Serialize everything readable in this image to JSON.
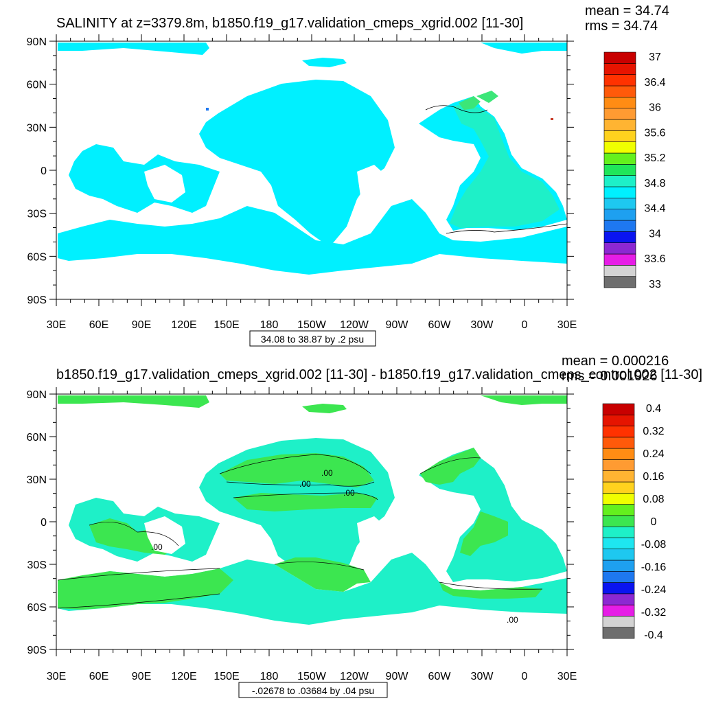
{
  "chart_data": [
    {
      "type": "heatmap",
      "title": "SALINITY at z=3379.8m, b1850.f19_g17.validation_cmeps_xgrid.002 [11-30]",
      "stats": {
        "mean": "mean = 34.74",
        "rms": "rms = 34.74"
      },
      "x_ticks": [
        "30E",
        "60E",
        "90E",
        "120E",
        "150E",
        "180",
        "150W",
        "120W",
        "90W",
        "60W",
        "30W",
        "0",
        "30E"
      ],
      "y_ticks": [
        "90N",
        "60N",
        "30N",
        "0",
        "30S",
        "60S",
        "90S"
      ],
      "y_values": [
        90,
        60,
        30,
        0,
        -30,
        -60,
        -90
      ],
      "contour_info": "34.08 to 38.87 by .2 psu",
      "colorbar": {
        "levels": [
          33,
          33.2,
          33.4,
          33.6,
          33.8,
          34,
          34.2,
          34.4,
          34.6,
          34.8,
          35,
          35.2,
          35.4,
          35.6,
          35.8,
          36,
          36.2,
          36.4,
          36.6,
          36.8,
          37
        ],
        "labels": [
          "37",
          "36.4",
          "36",
          "35.6",
          "35.2",
          "34.8",
          "34.4",
          "34",
          "33.6",
          "33"
        ],
        "colors": [
          "#6e6e6e",
          "#d3d3d3",
          "#e61de6",
          "#8c28d2",
          "#0a14f0",
          "#1e78f0",
          "#1ea0f0",
          "#1ec8f0",
          "#00f0ff",
          "#1ef0c8",
          "#20e65a",
          "#64f01e",
          "#f0ff00",
          "#ffd21e",
          "#ffb432",
          "#ff9b32",
          "#ff8c14",
          "#ff5a0a",
          "#ff3200",
          "#e61400",
          "#c80000"
        ]
      },
      "field_colors": {
        "ocean": "#00f0ff",
        "high": "#1ef0c8",
        "high2": "#3ce678",
        "dot_blue": "#1e78f0",
        "dot_red": "#c83c28"
      }
    },
    {
      "type": "heatmap",
      "title": "b1850.f19_g17.validation_cmeps_xgrid.002 [11-30] - b1850.f19_g17.validation_cmeps_control.002 [11-30]",
      "stats": {
        "mean": "mean = 0.000216",
        "rms": "rms = 0.001926"
      },
      "x_ticks": [
        "30E",
        "60E",
        "90E",
        "120E",
        "150E",
        "180",
        "150W",
        "120W",
        "90W",
        "60W",
        "30W",
        "0",
        "30E"
      ],
      "y_ticks": [
        "90N",
        "60N",
        "30N",
        "0",
        "30S",
        "60S",
        "90S"
      ],
      "y_values": [
        90,
        60,
        30,
        0,
        -30,
        -60,
        -90
      ],
      "contour_info": "-.02678 to .03684 by .04 psu",
      "contour_labels": [
        ".00",
        ".00",
        ".00",
        ".00",
        ".00"
      ],
      "colorbar": {
        "levels": [
          -0.4,
          -0.36,
          -0.32,
          -0.28,
          -0.24,
          -0.2,
          -0.16,
          -0.12,
          -0.08,
          -0.04,
          0,
          0.04,
          0.08,
          0.12,
          0.16,
          0.2,
          0.24,
          0.28,
          0.32,
          0.36,
          0.4
        ],
        "labels": [
          "0.4",
          "0.32",
          "0.24",
          "0.16",
          "0.08",
          "0",
          "-0.08",
          "-0.16",
          "-0.24",
          "-0.32",
          "-0.4"
        ],
        "colors": [
          "#6e6e6e",
          "#d3d3d3",
          "#e61de6",
          "#8c28d2",
          "#0a14f0",
          "#1e78f0",
          "#1ea0f0",
          "#1ec8f0",
          "#1ee6f0",
          "#1ef0c8",
          "#3ce650",
          "#64f01e",
          "#f0ff00",
          "#ffd21e",
          "#ffb432",
          "#ff9b32",
          "#ff8c14",
          "#ff5a0a",
          "#ff3200",
          "#e61400",
          "#c80000"
        ]
      },
      "field_colors": {
        "neg": "#1ef0c8",
        "pos": "#3ce650"
      }
    }
  ]
}
